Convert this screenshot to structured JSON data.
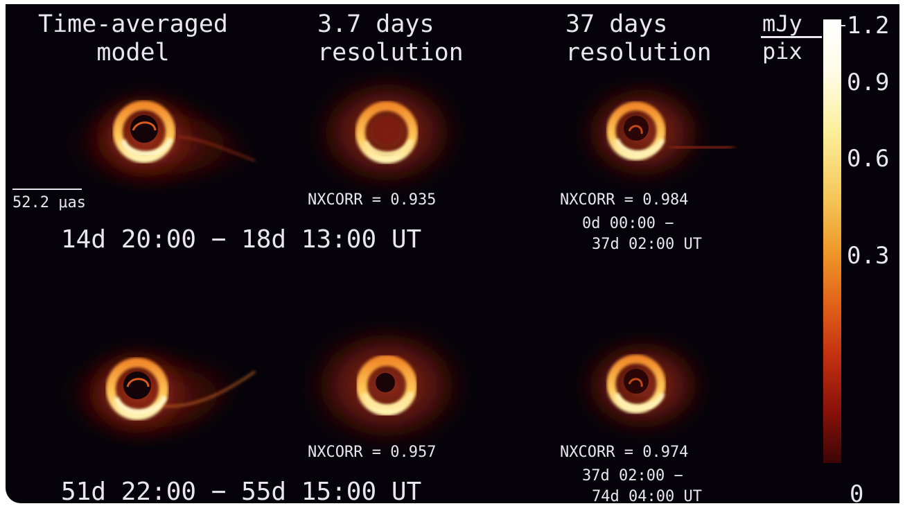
{
  "headers": {
    "col1_line1": "Time-averaged",
    "col1_line2": "model",
    "col2_line1": "3.7 days",
    "col2_line2": "resolution",
    "col3_line1": "37 days",
    "col3_line2": "resolution"
  },
  "colorbar": {
    "unit_top": "mJy",
    "unit_bottom": "pix",
    "ticks": [
      "1.2",
      "0.9",
      "0.6",
      "0.3",
      "0"
    ]
  },
  "scale_bar_label": "52.2 μas",
  "row1": {
    "nxcorr_col2": "NXCORR = 0.935",
    "nxcorr_col3": "NXCORR = 0.984",
    "time_range": "14d 20:00 − 18d 13:00 UT",
    "col3_time_line1": "0d 00:00 −",
    "col3_time_line2": "37d 02:00 UT"
  },
  "row2": {
    "nxcorr_col2": "NXCORR = 0.957",
    "nxcorr_col3": "NXCORR = 0.974",
    "time_range": "51d 22:00 − 55d 15:00 UT",
    "col3_time_line1": "37d 02:00 −",
    "col3_time_line2": "74d 04:00 UT"
  },
  "colors": {
    "background": "#050309",
    "text": "#e9e7ee",
    "ring_bright": "#ffd36a",
    "ring_mid": "#f07a1c",
    "halo": "#8a1a0c"
  }
}
